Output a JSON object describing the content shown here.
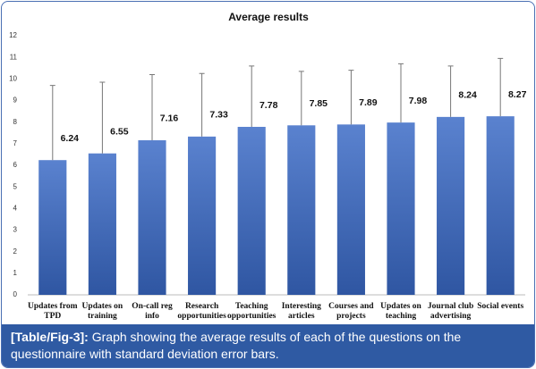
{
  "chart_data": {
    "type": "bar",
    "title": "Average results",
    "categories": [
      "Updates from TPD",
      "Updates on training",
      "On-call reg info",
      "Research opportunities",
      "Teaching opportunities",
      "Interesting articles",
      "Courses and projects",
      "Updates on teaching",
      "Journal club advertising",
      "Social events"
    ],
    "values": [
      6.24,
      6.55,
      7.16,
      7.33,
      7.78,
      7.85,
      7.89,
      7.98,
      8.24,
      8.27
    ],
    "errors": [
      3.46,
      3.3,
      3.04,
      2.92,
      2.82,
      2.5,
      2.51,
      2.72,
      2.36,
      2.68
    ],
    "color": "#4470c0",
    "ylim": [
      0,
      12
    ],
    "yticks": [
      0,
      1,
      2,
      3,
      4,
      5,
      6,
      7,
      8,
      9,
      10,
      11,
      12
    ],
    "grid": false
  },
  "caption": {
    "label": "[Table/Fig-3]:",
    "text": "Graph showing the average results of each of the questions on the questionnaire with standard deviation error bars."
  }
}
